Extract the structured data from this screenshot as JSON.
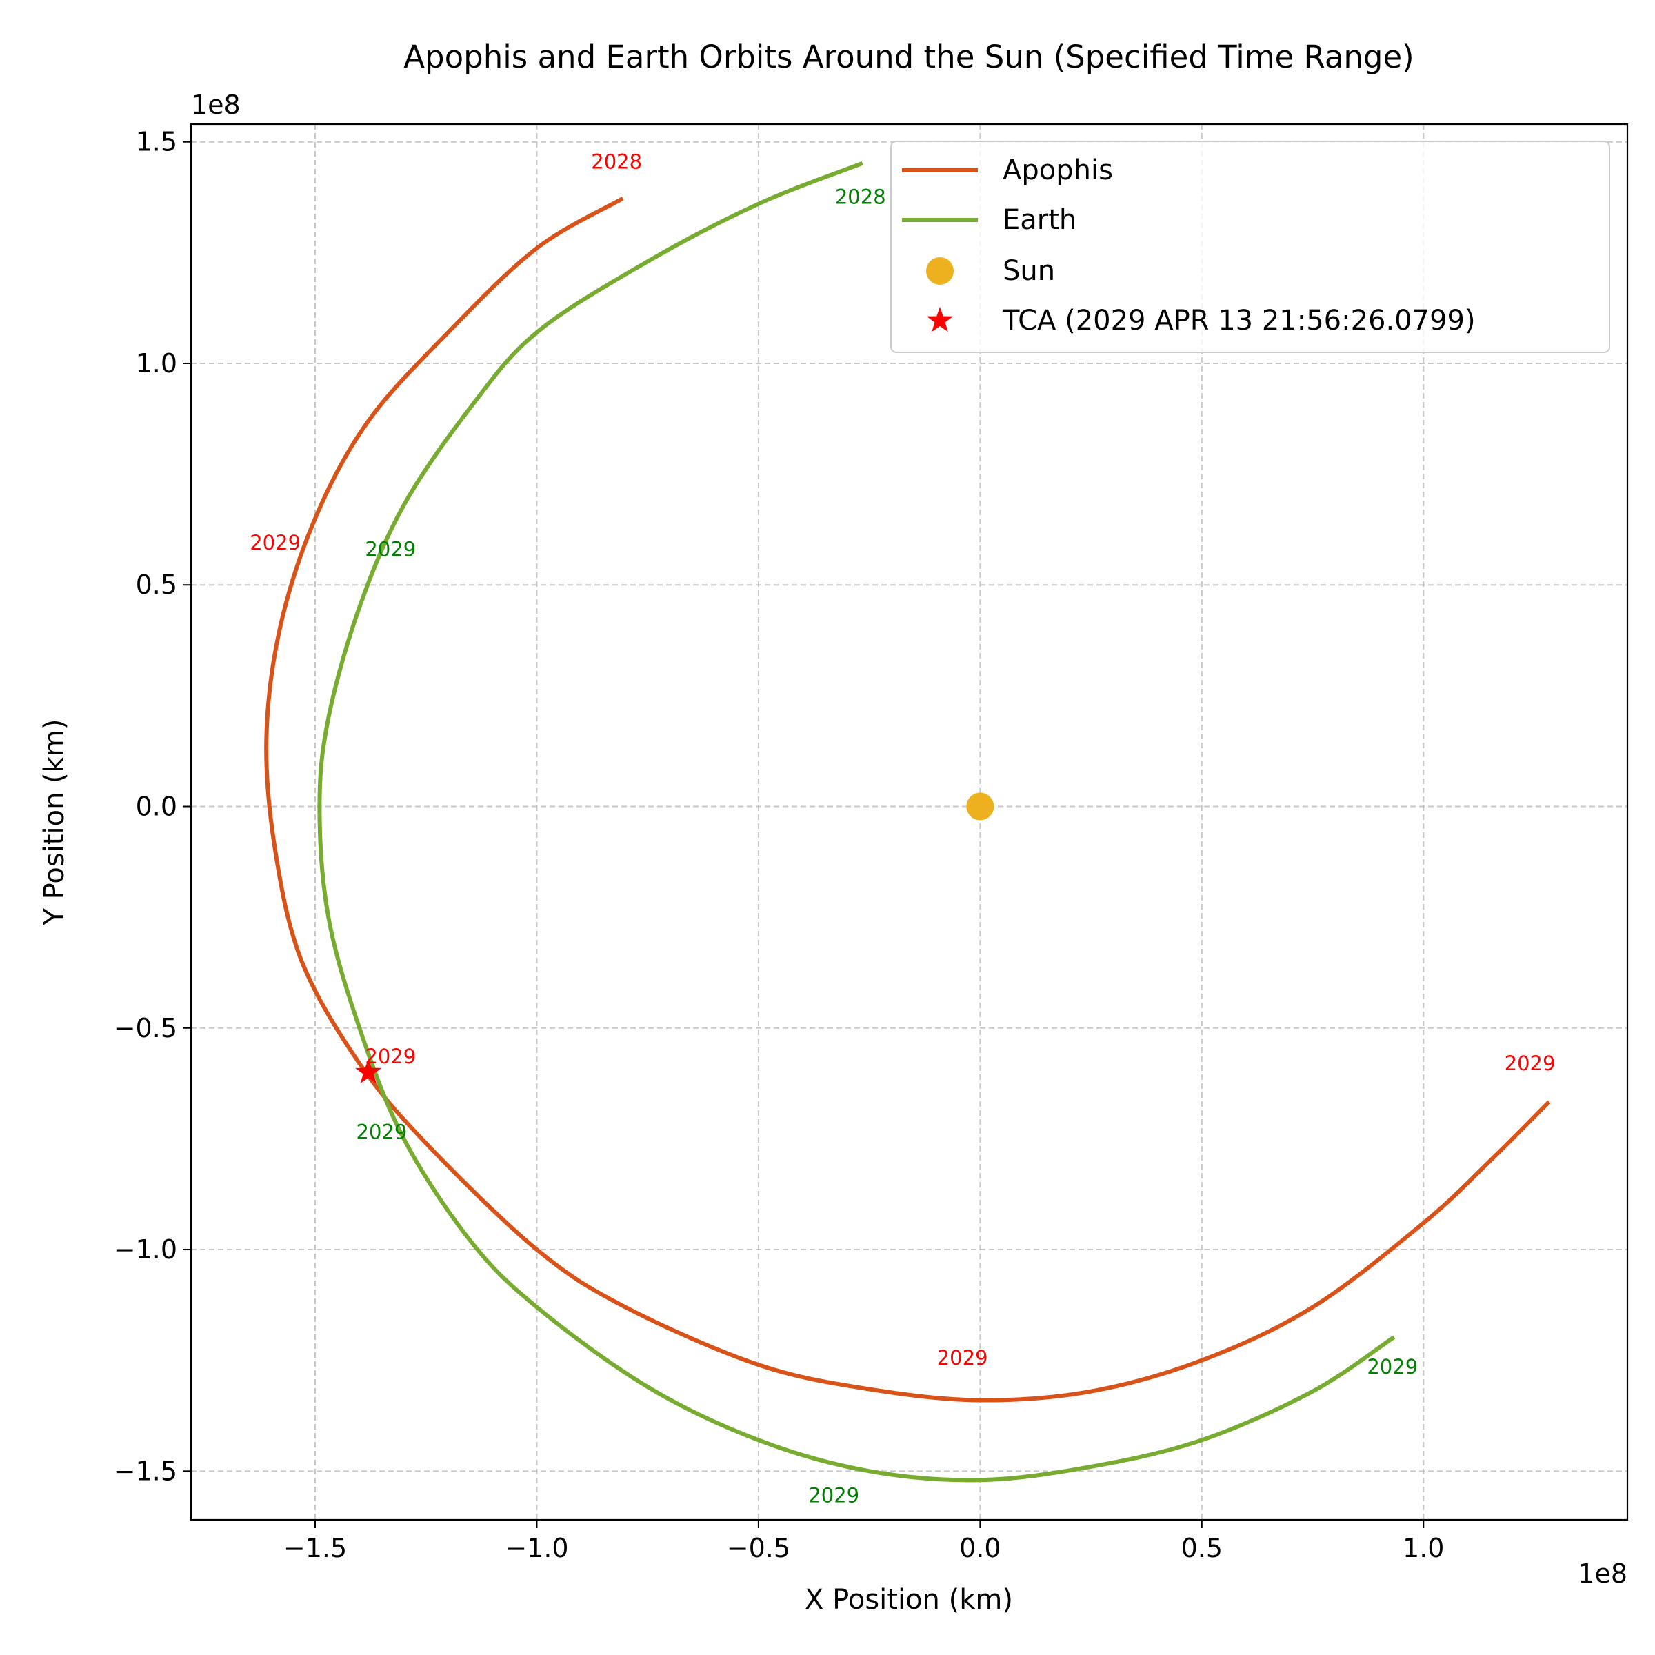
{
  "chart_data": {
    "type": "line",
    "title": "Apophis and Earth Orbits Around the Sun (Specified Time Range)",
    "xlabel": "X Position (km)",
    "ylabel": "Y Position (km)",
    "x_offset_text": "1e8",
    "y_offset_text": "1e8",
    "xlim": [
      -178000000.0,
      146000000.0
    ],
    "ylim": [
      -161000000.0,
      154000000.0
    ],
    "x_ticks": [
      -150000000.0,
      -100000000.0,
      -50000000.0,
      0,
      50000000.0,
      100000000.0
    ],
    "x_tick_labels": [
      "−1.5",
      "−1.0",
      "−0.5",
      "0.0",
      "0.5",
      "1.0"
    ],
    "y_ticks": [
      150000000.0,
      100000000.0,
      50000000.0,
      0,
      -50000000.0,
      -100000000.0,
      -150000000.0
    ],
    "y_tick_labels": [
      "1.5",
      "1.0",
      "0.5",
      "0.0",
      "−0.5",
      "−1.0",
      "−1.5"
    ],
    "grid": true,
    "legend_position": "top-right",
    "legend": [
      "Apophis",
      "Earth",
      "Sun",
      "TCA (2029 APR 13 21:56:26.0799)"
    ],
    "colors": {
      "apophis": "#d95319",
      "earth": "#77ac30",
      "sun": "#edb120",
      "tca": "#ff0000",
      "apophis_label": "#ff0000",
      "earth_label": "#008000"
    },
    "series": [
      {
        "name": "Apophis",
        "points": [
          [
            -81000000.0,
            137000000.0
          ],
          [
            -100000000.0,
            126000000.0
          ],
          [
            -120000000.0,
            107000000.0
          ],
          [
            -138000000.0,
            87000000.0
          ],
          [
            -150000000.0,
            65000000.0
          ],
          [
            -158000000.0,
            40000000.0
          ],
          [
            -161000000.0,
            15000000.0
          ],
          [
            -159000000.0,
            -10000000.0
          ],
          [
            -153000000.0,
            -35000000.0
          ],
          [
            -140000000.0,
            -58000000.0
          ],
          [
            -125000000.0,
            -76000000.0
          ],
          [
            -100000000.0,
            -100000000.0
          ],
          [
            -80000000.0,
            -113000000.0
          ],
          [
            -50000000.0,
            -126000000.0
          ],
          [
            -25000000.0,
            -131500000.0
          ],
          [
            0.0,
            -134000000.0
          ],
          [
            25000000.0,
            -132000000.0
          ],
          [
            50000000.0,
            -125000000.0
          ],
          [
            75000000.0,
            -113000000.0
          ],
          [
            100000000.0,
            -94000000.0
          ],
          [
            115000000.0,
            -80000000.0
          ],
          [
            128000000.0,
            -67000000.0
          ]
        ]
      },
      {
        "name": "Earth",
        "points": [
          [
            -27000000.0,
            145000000.0
          ],
          [
            -50000000.0,
            136000000.0
          ],
          [
            -75000000.0,
            123000000.0
          ],
          [
            -100000000.0,
            107000000.0
          ],
          [
            -115000000.0,
            90000000.0
          ],
          [
            -130000000.0,
            68000000.0
          ],
          [
            -140000000.0,
            45000000.0
          ],
          [
            -147000000.0,
            20000000.0
          ],
          [
            -149000000.0,
            0.0
          ],
          [
            -147000000.0,
            -25000000.0
          ],
          [
            -140000000.0,
            -50000000.0
          ],
          [
            -130000000.0,
            -75000000.0
          ],
          [
            -115000000.0,
            -98000000.0
          ],
          [
            -100000000.0,
            -113000000.0
          ],
          [
            -75000000.0,
            -131000000.0
          ],
          [
            -50000000.0,
            -143000000.0
          ],
          [
            -25000000.0,
            -150000000.0
          ],
          [
            0.0,
            -152000000.0
          ],
          [
            25000000.0,
            -149000000.0
          ],
          [
            50000000.0,
            -143000000.0
          ],
          [
            75000000.0,
            -132000000.0
          ],
          [
            93000000.0,
            -120000000.0
          ]
        ]
      }
    ],
    "sun": [
      0,
      0
    ],
    "tca": [
      -138000000.0,
      -60000000.0
    ],
    "year_labels": [
      {
        "text": "2028",
        "x": -82000000.0,
        "y": 144000000.0,
        "series": "Apophis"
      },
      {
        "text": "2029",
        "x": -159000000.0,
        "y": 58000000.0,
        "series": "Apophis"
      },
      {
        "text": "2029",
        "x": -133000000.0,
        "y": -58000000.0,
        "series": "Apophis"
      },
      {
        "text": "2029",
        "x": -4000000.0,
        "y": -126000000.0,
        "series": "Apophis"
      },
      {
        "text": "2029",
        "x": 124000000.0,
        "y": -59500000.0,
        "series": "Apophis"
      },
      {
        "text": "2028",
        "x": -27000000.0,
        "y": 136000000.0,
        "series": "Earth"
      },
      {
        "text": "2029",
        "x": -133000000.0,
        "y": 56500000.0,
        "series": "Earth"
      },
      {
        "text": "2029",
        "x": -135000000.0,
        "y": -75000000.0,
        "series": "Earth"
      },
      {
        "text": "2029",
        "x": -33000000.0,
        "y": -157000000.0,
        "series": "Earth"
      },
      {
        "text": "2029",
        "x": 93000000.0,
        "y": -128000000.0,
        "series": "Earth"
      }
    ]
  }
}
